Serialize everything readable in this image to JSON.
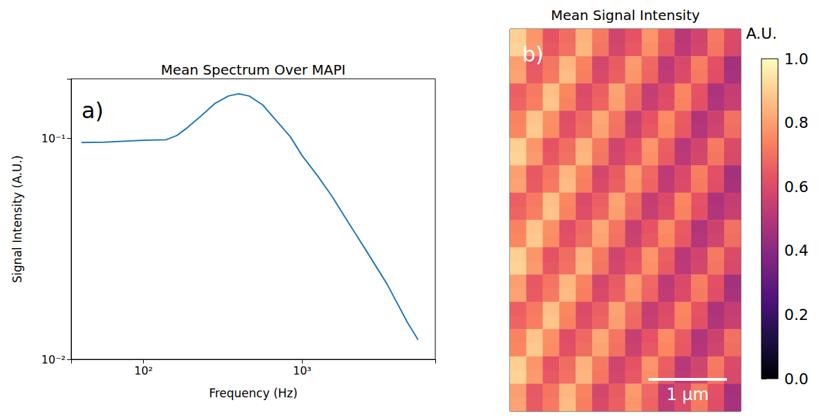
{
  "chart_data": [
    {
      "type": "line",
      "title": "Mean Spectrum Over MAPI",
      "panel": "a)",
      "x_label": "Frequency (Hz)",
      "y_label": "Signal Intensity (A.U.)",
      "x": [
        40.6,
        56.5,
        100,
        139,
        162,
        188,
        230,
        281,
        343,
        398,
        463,
        565,
        690,
        843,
        1000,
        1259,
        1538,
        1879,
        2535,
        3427,
        4628,
        5375
      ],
      "values": [
        0.0958,
        0.096,
        0.098,
        0.0986,
        0.103,
        0.1115,
        0.126,
        0.1436,
        0.1555,
        0.159,
        0.1555,
        0.1415,
        0.1198,
        0.1015,
        0.0834,
        0.0672,
        0.0548,
        0.0435,
        0.031,
        0.0219,
        0.0146,
        0.01225
      ],
      "color": "#1f77b4",
      "log": true,
      "grid": false,
      "xlim": [
        35,
        6900
      ],
      "ylim": [
        0.01,
        0.186
      ],
      "xticks": [
        {
          "value": 100,
          "label": "10²"
        },
        {
          "value": 1000,
          "label": "10³"
        }
      ],
      "yticks": [
        {
          "value": 0.01,
          "label": "10⁻²"
        },
        {
          "value": 0.1,
          "label": "10⁻¹"
        }
      ]
    },
    {
      "type": "heatmap",
      "title": "Mean Signal Intensity",
      "panel": "b)",
      "tick_labels": false,
      "cell_size": 0.21,
      "scale_bar": {
        "label": "1 μm",
        "length": 1
      },
      "colorbar": {
        "label": "A.U.",
        "range": [
          0,
          1
        ],
        "ticks": [
          {
            "value": 0,
            "label": "0.0"
          },
          0.2,
          0.4,
          0.6,
          0.8,
          {
            "value": 1,
            "label": "1.0"
          }
        ]
      },
      "cells": [
        [
          0.9,
          0.78,
          0.63,
          0.69,
          0.84,
          0.72,
          0.57,
          0.63,
          0.78,
          0.66,
          0.51,
          0.57,
          0.72,
          0.6
        ],
        [
          0.91,
          0.79,
          0.64,
          0.7,
          0.85,
          0.71,
          0.58,
          0.64,
          0.77,
          0.65,
          0.52,
          0.58,
          0.71,
          0.59
        ],
        [
          0.8,
          0.64,
          0.71,
          0.85,
          0.74,
          0.58,
          0.65,
          0.79,
          0.68,
          0.52,
          0.59,
          0.73,
          0.62,
          0.46
        ],
        [
          0.81,
          0.65,
          0.72,
          0.86,
          0.73,
          0.59,
          0.66,
          0.78,
          0.67,
          0.53,
          0.6,
          0.72,
          0.61,
          0.47
        ],
        [
          0.66,
          0.72,
          0.87,
          0.75,
          0.6,
          0.66,
          0.81,
          0.69,
          0.54,
          0.6,
          0.75,
          0.63,
          0.48,
          0.54
        ],
        [
          0.67,
          0.73,
          0.88,
          0.74,
          0.61,
          0.67,
          0.8,
          0.68,
          0.55,
          0.61,
          0.74,
          0.62,
          0.49,
          0.55
        ],
        [
          0.74,
          0.88,
          0.77,
          0.61,
          0.68,
          0.82,
          0.71,
          0.55,
          0.63,
          0.76,
          0.65,
          0.49,
          0.56,
          0.7
        ],
        [
          0.75,
          0.89,
          0.76,
          0.62,
          0.69,
          0.81,
          0.7,
          0.56,
          0.64,
          0.75,
          0.64,
          0.5,
          0.57,
          0.69
        ],
        [
          0.9,
          0.78,
          0.63,
          0.69,
          0.84,
          0.72,
          0.57,
          0.63,
          0.78,
          0.66,
          0.51,
          0.57,
          0.72,
          0.6
        ],
        [
          0.91,
          0.79,
          0.64,
          0.7,
          0.85,
          0.71,
          0.58,
          0.64,
          0.77,
          0.65,
          0.52,
          0.58,
          0.71,
          0.59
        ],
        [
          0.8,
          0.64,
          0.71,
          0.85,
          0.74,
          0.58,
          0.65,
          0.79,
          0.68,
          0.52,
          0.59,
          0.73,
          0.62,
          0.46
        ],
        [
          0.81,
          0.65,
          0.72,
          0.86,
          0.73,
          0.59,
          0.66,
          0.78,
          0.67,
          0.53,
          0.6,
          0.72,
          0.61,
          0.47
        ],
        [
          0.66,
          0.72,
          0.87,
          0.75,
          0.6,
          0.66,
          0.81,
          0.69,
          0.54,
          0.6,
          0.75,
          0.63,
          0.48,
          0.54
        ],
        [
          0.67,
          0.73,
          0.88,
          0.74,
          0.61,
          0.67,
          0.8,
          0.68,
          0.55,
          0.61,
          0.74,
          0.62,
          0.49,
          0.55
        ],
        [
          0.74,
          0.88,
          0.77,
          0.61,
          0.68,
          0.82,
          0.71,
          0.55,
          0.63,
          0.76,
          0.65,
          0.49,
          0.56,
          0.7
        ],
        [
          0.75,
          0.89,
          0.76,
          0.62,
          0.69,
          0.81,
          0.7,
          0.56,
          0.64,
          0.75,
          0.64,
          0.5,
          0.57,
          0.69
        ],
        [
          0.9,
          0.78,
          0.63,
          0.69,
          0.84,
          0.72,
          0.57,
          0.63,
          0.78,
          0.66,
          0.51,
          0.57,
          0.72,
          0.6
        ],
        [
          0.91,
          0.79,
          0.64,
          0.7,
          0.85,
          0.71,
          0.58,
          0.64,
          0.77,
          0.65,
          0.52,
          0.58,
          0.71,
          0.59
        ],
        [
          0.8,
          0.64,
          0.71,
          0.85,
          0.74,
          0.58,
          0.65,
          0.79,
          0.68,
          0.52,
          0.59,
          0.73,
          0.62,
          0.46
        ],
        [
          0.81,
          0.65,
          0.72,
          0.86,
          0.73,
          0.59,
          0.66,
          0.78,
          0.67,
          0.53,
          0.6,
          0.72,
          0.61,
          0.47
        ],
        [
          0.66,
          0.72,
          0.87,
          0.75,
          0.6,
          0.66,
          0.81,
          0.69,
          0.54,
          0.6,
          0.75,
          0.63,
          0.48,
          0.54
        ],
        [
          0.67,
          0.73,
          0.88,
          0.74,
          0.61,
          0.67,
          0.8,
          0.68,
          0.55,
          0.61,
          0.74,
          0.62,
          0.49,
          0.55
        ],
        [
          0.74,
          0.88,
          0.77,
          0.61,
          0.68,
          0.82,
          0.71,
          0.55,
          0.63,
          0.76,
          0.65,
          0.49,
          0.56,
          0.7
        ],
        [
          0.75,
          0.89,
          0.76,
          0.62,
          0.69,
          0.81,
          0.7,
          0.56,
          0.64,
          0.75,
          0.64,
          0.5,
          0.57,
          0.69
        ],
        [
          0.9,
          0.78,
          0.63,
          0.69,
          0.84,
          0.72,
          0.57,
          0.63,
          0.78,
          0.66,
          0.51,
          0.57,
          0.72,
          0.6
        ],
        [
          0.91,
          0.79,
          0.64,
          0.7,
          0.85,
          0.71,
          0.58,
          0.64,
          0.77,
          0.65,
          0.52,
          0.58,
          0.71,
          0.59
        ],
        [
          0.8,
          0.64,
          0.71,
          0.85,
          0.74,
          0.58,
          0.65,
          0.79,
          0.68,
          0.52,
          0.59,
          0.73,
          0.62,
          0.46
        ],
        [
          0.81,
          0.65,
          0.72,
          0.86,
          0.73,
          0.59,
          0.66,
          0.78,
          0.67,
          0.53,
          0.6,
          0.72,
          0.61,
          0.47
        ]
      ]
    }
  ]
}
